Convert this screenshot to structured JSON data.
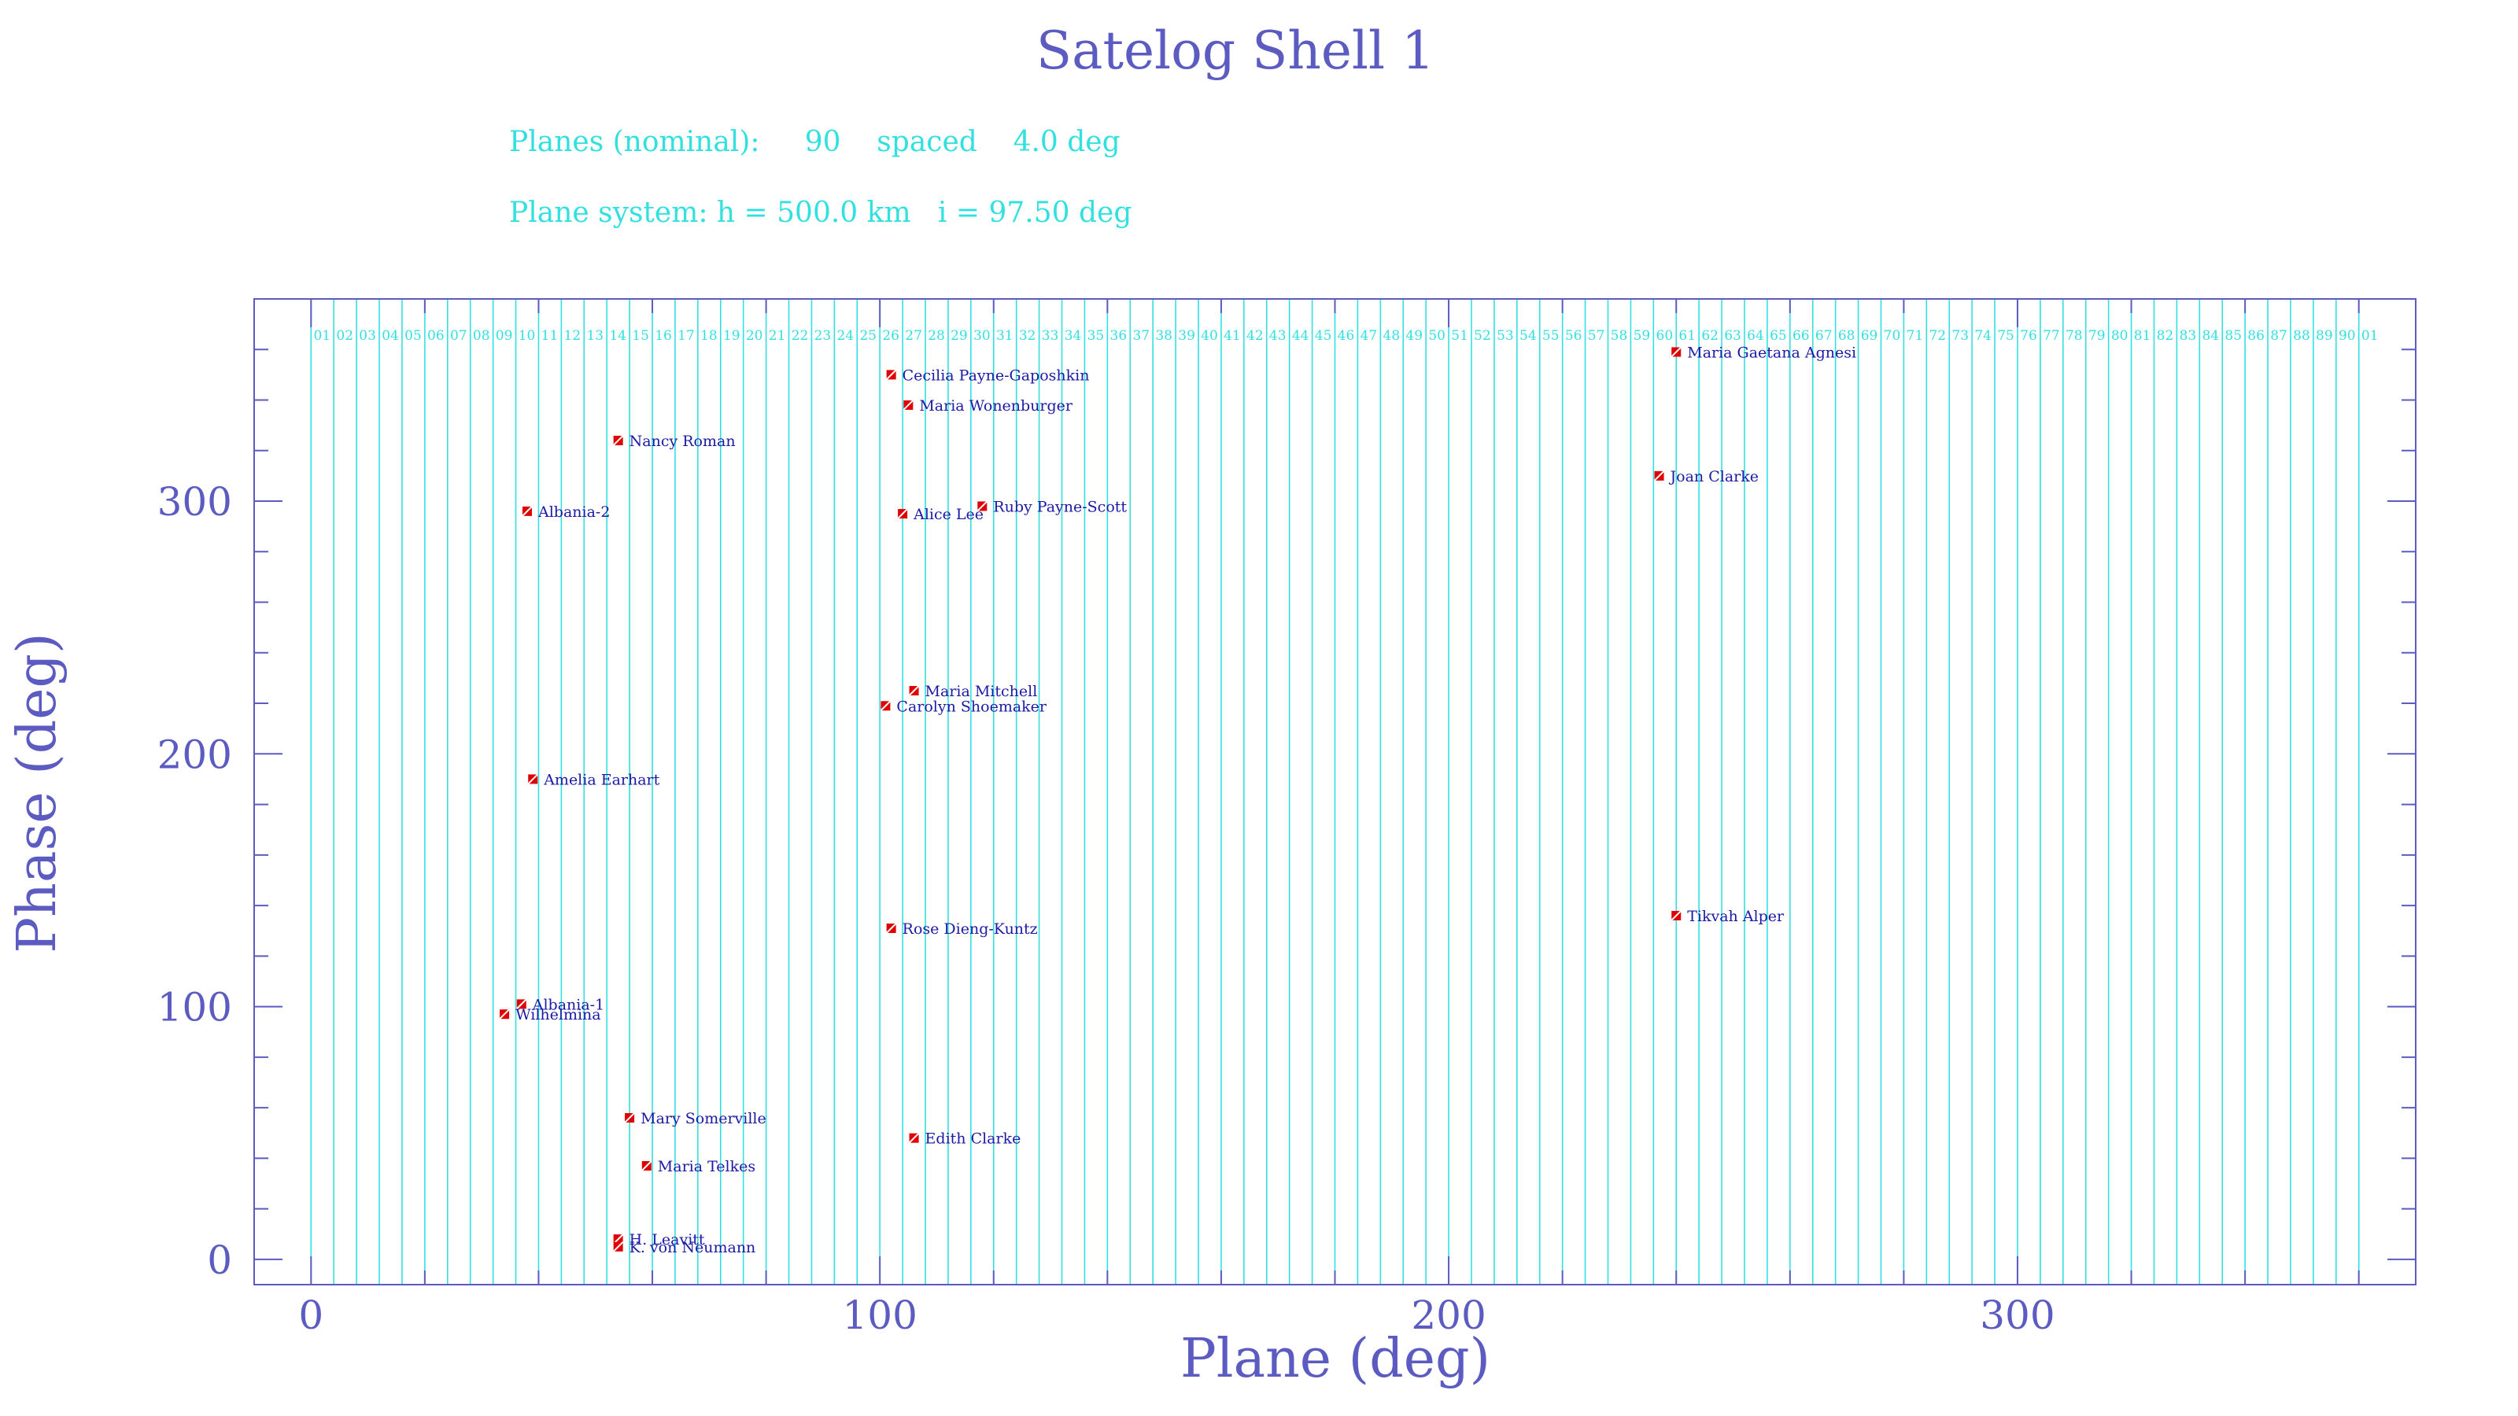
{
  "chart_data": {
    "type": "scatter",
    "title": "Satelog Shell 1",
    "info": {
      "planes_line": "Planes (nominal):     90    spaced    4.0 deg",
      "system_line": "Plane system: h = 500.0 km   i = 97.50 deg"
    },
    "xlabel": "Plane (deg)",
    "ylabel": "Phase (deg)",
    "xlim": [
      -10,
      370
    ],
    "ylim": [
      -10,
      380
    ],
    "xticks": [
      0,
      100,
      200,
      300
    ],
    "yticks": [
      0,
      100,
      200,
      300
    ],
    "grid": false,
    "planes": {
      "count": 90,
      "spacing": 4.0,
      "label_y": 366,
      "labels": [
        "01",
        "02",
        "03",
        "04",
        "05",
        "06",
        "07",
        "08",
        "09",
        "10",
        "11",
        "12",
        "13",
        "14",
        "15",
        "16",
        "17",
        "18",
        "19",
        "20",
        "21",
        "22",
        "23",
        "24",
        "25",
        "26",
        "27",
        "28",
        "29",
        "30",
        "31",
        "32",
        "33",
        "34",
        "35",
        "36",
        "37",
        "38",
        "39",
        "40",
        "41",
        "42",
        "43",
        "44",
        "45",
        "46",
        "47",
        "48",
        "49",
        "50",
        "51",
        "52",
        "53",
        "54",
        "55",
        "56",
        "57",
        "58",
        "59",
        "60",
        "61",
        "62",
        "63",
        "64",
        "65",
        "66",
        "67",
        "68",
        "69",
        "70",
        "71",
        "72",
        "73",
        "74",
        "75",
        "76",
        "77",
        "78",
        "79",
        "80",
        "81",
        "82",
        "83",
        "84",
        "85",
        "86",
        "87",
        "88",
        "89",
        "90",
        "01"
      ]
    },
    "satellites": [
      {
        "name": "Maria Gaetana Agnesi",
        "x": 240,
        "y": 359
      },
      {
        "name": "Cecilia Payne-Gaposhkin",
        "x": 102,
        "y": 350
      },
      {
        "name": "Maria Wonenburger",
        "x": 105,
        "y": 338
      },
      {
        "name": "Nancy Roman",
        "x": 54,
        "y": 324
      },
      {
        "name": "Joan Clarke",
        "x": 237,
        "y": 310
      },
      {
        "name": "Albania-2",
        "x": 38,
        "y": 296
      },
      {
        "name": "Ruby Payne-Scott",
        "x": 118,
        "y": 298
      },
      {
        "name": "Alice Lee",
        "x": 104,
        "y": 295
      },
      {
        "name": "Maria Mitchell",
        "x": 106,
        "y": 225
      },
      {
        "name": "Carolyn Shoemaker",
        "x": 101,
        "y": 219
      },
      {
        "name": "Amelia Earhart",
        "x": 39,
        "y": 190
      },
      {
        "name": "Tikvah Alper",
        "x": 240,
        "y": 136
      },
      {
        "name": "Rose Dieng-Kuntz",
        "x": 102,
        "y": 131
      },
      {
        "name": "Albania-1",
        "x": 37,
        "y": 101
      },
      {
        "name": "Wilhelmina",
        "x": 34,
        "y": 97
      },
      {
        "name": "Mary Somerville",
        "x": 56,
        "y": 56
      },
      {
        "name": "Edith Clarke",
        "x": 106,
        "y": 48
      },
      {
        "name": "Maria Telkes",
        "x": 59,
        "y": 37
      },
      {
        "name": "H. Leavitt",
        "x": 54,
        "y": 8
      },
      {
        "name": "K. von Neumann",
        "x": 54,
        "y": 5
      }
    ],
    "colors": {
      "frame": "#5b5bc2",
      "plane_lines": "#33e0e0",
      "marker": "#e00000",
      "sat_label": "#1a1aa6"
    }
  }
}
